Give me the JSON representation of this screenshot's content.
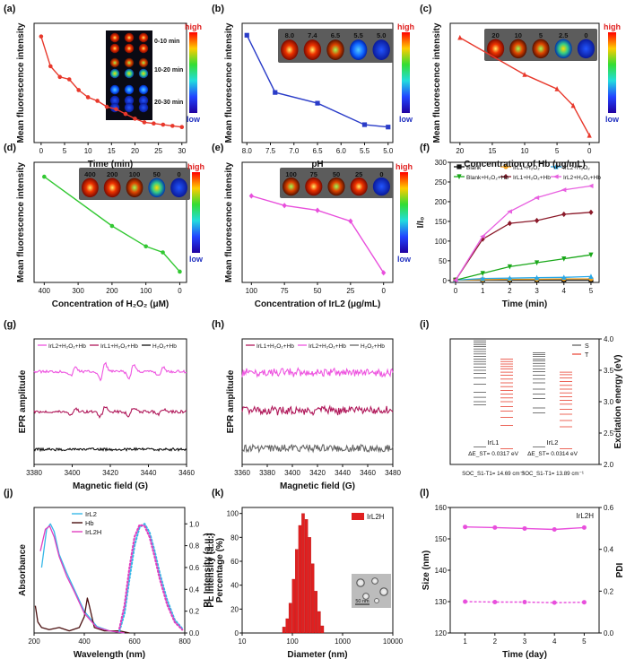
{
  "figure": {
    "panel_letters": [
      "(a)",
      "(b)",
      "(c)",
      "(d)",
      "(e)",
      "(f)",
      "(g)",
      "(h)",
      "(i)",
      "(j)",
      "(k)",
      "(l)"
    ],
    "colorbar": {
      "high": "high",
      "low": "low"
    }
  },
  "chart_data": [
    {
      "panel": "(a)",
      "type": "line",
      "xlabel": "Time (min)",
      "ylabel": "Mean fluorescence intensity",
      "xlim": [
        -1.5,
        31
      ],
      "ylim": [
        0,
        1
      ],
      "xticks": [
        0,
        5,
        10,
        15,
        20,
        25,
        30
      ],
      "series": [
        {
          "name": "intensity",
          "color": "#e8382b",
          "x": [
            0,
            2,
            4,
            6,
            8,
            10,
            12,
            14,
            16,
            18,
            20,
            22,
            24,
            26,
            28,
            30
          ],
          "y": [
            0.89,
            0.64,
            0.55,
            0.53,
            0.44,
            0.38,
            0.35,
            0.3,
            0.28,
            0.24,
            0.2,
            0.17,
            0.16,
            0.15,
            0.14,
            0.13
          ]
        }
      ],
      "inset_labels": [
        "0-10 min",
        "10-20 min",
        "20-30 min"
      ]
    },
    {
      "panel": "(b)",
      "type": "line",
      "xlabel": "pH",
      "ylabel": "Mean fluorescence intensity",
      "xlim": [
        8.1,
        4.9
      ],
      "ylim": [
        0,
        1
      ],
      "xticks": [
        8.0,
        7.5,
        7.0,
        6.5,
        6.0,
        5.5,
        5.0
      ],
      "xtick_labels": [
        "8.0",
        "7.5",
        "7.0",
        "6.5",
        "6.0",
        "5.5",
        "5.0"
      ],
      "series": [
        {
          "name": "intensity",
          "color": "#2a3cc8",
          "x": [
            8.0,
            7.4,
            6.5,
            5.5,
            5.0
          ],
          "y": [
            0.9,
            0.42,
            0.33,
            0.15,
            0.13
          ]
        }
      ],
      "inset_labels": [
        "8.0",
        "7.4",
        "6.5",
        "5.5",
        "5.0"
      ]
    },
    {
      "panel": "(c)",
      "type": "line",
      "xlabel": "Concentration of Hb (μg/mL)",
      "ylabel": "Mean fluorescence intensity",
      "xlim": [
        21.5,
        -1.5
      ],
      "ylim": [
        0,
        1
      ],
      "xticks": [
        20,
        15,
        10,
        5,
        0
      ],
      "series": [
        {
          "name": "intensity",
          "color": "#e8382b",
          "x": [
            20,
            10,
            5,
            2.5,
            0
          ],
          "y": [
            0.88,
            0.57,
            0.45,
            0.31,
            0.06
          ]
        }
      ],
      "inset_labels": [
        "20",
        "10",
        "5",
        "2.5",
        "0"
      ]
    },
    {
      "panel": "(d)",
      "type": "line",
      "xlabel": "Concentration of H₂O₂ (μM)",
      "ylabel": "Mean fluorescence intensity",
      "xlim": [
        430,
        -20
      ],
      "ylim": [
        0,
        1
      ],
      "xticks": [
        400,
        300,
        200,
        100,
        0
      ],
      "series": [
        {
          "name": "intensity",
          "color": "#33c833",
          "x": [
            400,
            200,
            100,
            50,
            0
          ],
          "y": [
            0.88,
            0.47,
            0.3,
            0.25,
            0.09
          ]
        }
      ],
      "inset_labels": [
        "400",
        "200",
        "100",
        "50",
        "0"
      ]
    },
    {
      "panel": "(e)",
      "type": "line",
      "xlabel": "Concentration of IrL2 (μg/mL)",
      "ylabel": "Mean fluorescence intensity",
      "xlim": [
        107,
        -7
      ],
      "ylim": [
        0,
        1
      ],
      "xticks": [
        100,
        75,
        50,
        25,
        0
      ],
      "series": [
        {
          "name": "intensity",
          "color": "#e84fdc",
          "x": [
            100,
            75,
            50,
            25,
            0
          ],
          "y": [
            0.72,
            0.64,
            0.6,
            0.51,
            0.08
          ]
        }
      ],
      "inset_labels": [
        "100",
        "75",
        "50",
        "25",
        "0"
      ]
    },
    {
      "panel": "(f)",
      "type": "line",
      "xlabel": "Time (min)",
      "ylabel": "I/I₀",
      "xlim": [
        -0.2,
        5.3
      ],
      "ylim": [
        -5,
        300
      ],
      "xticks": [
        0,
        1,
        2,
        3,
        4,
        5
      ],
      "yticks": [
        0,
        50,
        100,
        150,
        200,
        250,
        300
      ],
      "series": [
        {
          "name": "Blank",
          "color": "#111111",
          "marker": "square",
          "x": [
            0,
            1,
            2,
            3,
            4,
            5
          ],
          "y": [
            1,
            1,
            1,
            1,
            1,
            1
          ]
        },
        {
          "name": "IrL1+H₂O₂",
          "color": "#f0a020",
          "marker": "circle",
          "x": [
            0,
            1,
            2,
            3,
            4,
            5
          ],
          "y": [
            1,
            2,
            3,
            3,
            4,
            4
          ]
        },
        {
          "name": "IrL2+H₂O₂",
          "color": "#28a8e8",
          "marker": "triangle",
          "x": [
            0,
            1,
            2,
            3,
            4,
            5
          ],
          "y": [
            1,
            5,
            6,
            7,
            8,
            10
          ]
        },
        {
          "name": "Blank+H₂O₂+Hb",
          "color": "#1aa81a",
          "marker": "triangle-down",
          "x": [
            0,
            1,
            2,
            3,
            4,
            5
          ],
          "y": [
            1,
            18,
            35,
            45,
            55,
            65
          ]
        },
        {
          "name": "IrL1+H₂O₂+Hb",
          "color": "#8b1a2a",
          "marker": "diamond",
          "x": [
            0,
            1,
            2,
            3,
            4,
            5
          ],
          "y": [
            1,
            105,
            145,
            152,
            168,
            173
          ]
        },
        {
          "name": "IrL2+H₂O₂+Hb",
          "color": "#e860e0",
          "marker": "triangle-left",
          "x": [
            0,
            1,
            2,
            3,
            4,
            5
          ],
          "y": [
            1,
            112,
            175,
            210,
            230,
            240
          ]
        }
      ]
    },
    {
      "panel": "(g)",
      "type": "line",
      "xlabel": "Magnetic field (G)",
      "ylabel": "EPR amplitude",
      "xlim": [
        3380,
        3460
      ],
      "xticks": [
        3380,
        3400,
        3420,
        3440,
        3460
      ],
      "legend": [
        "IrL2+H₂O₂+Hb",
        "IrL1+H₂O₂+Hb",
        "H₂O₂+Hb"
      ],
      "series": [
        {
          "name": "IrL2+H₂O₂+Hb",
          "color": "#ee55e0",
          "baseline": 0.74,
          "peaks": [
            {
              "x": 3400.5,
              "h": 1.0
            },
            {
              "x": 3416,
              "h": 1.9
            },
            {
              "x": 3431,
              "h": 1.6
            },
            {
              "x": 3446.5,
              "h": 0.9
            }
          ]
        },
        {
          "name": "IrL1+H₂O₂+Hb",
          "color": "#b0185a",
          "baseline": 0.42,
          "peaks": [
            {
              "x": 3400.5,
              "h": 0.7
            },
            {
              "x": 3416,
              "h": 1.1
            },
            {
              "x": 3431,
              "h": 1.0
            },
            {
              "x": 3446.5,
              "h": 0.55
            }
          ]
        },
        {
          "name": "H₂O₂+Hb",
          "color": "#111111",
          "baseline": 0.12,
          "peaks": []
        }
      ]
    },
    {
      "panel": "(h)",
      "type": "line",
      "xlabel": "Magnetic field (G)",
      "ylabel": "EPR amplitude",
      "xlim": [
        3360,
        3480
      ],
      "xticks": [
        3360,
        3380,
        3400,
        3420,
        3440,
        3460,
        3480
      ],
      "legend": [
        "IrL1+H₂O₂+Hb",
        "IrL2+H₂O₂+Hb",
        "H₂O₂+Hb"
      ],
      "series": [
        {
          "name": "IrL2+H₂O₂+Hb",
          "color": "#ee55e0",
          "baseline": 0.73
        },
        {
          "name": "IrL1+H₂O₂+Hb",
          "color": "#b0185a",
          "baseline": 0.43
        },
        {
          "name": "H₂O₂+Hb",
          "color": "#666666",
          "baseline": 0.13
        }
      ]
    },
    {
      "panel": "(i)",
      "type": "line",
      "ylabel": "Excitation energy (eV)",
      "ylim": [
        2.0,
        4.0
      ],
      "yticks": [
        2.0,
        2.5,
        3.0,
        3.5,
        4.0
      ],
      "legend": [
        "S",
        "T"
      ],
      "legend_colors": [
        "#555555",
        "#e84030"
      ],
      "groups": [
        {
          "name": "IrL1",
          "S": [
            2.28,
            2.95,
            3.0,
            3.07,
            3.15,
            3.28,
            3.38,
            3.45,
            3.5,
            3.55,
            3.6,
            3.64,
            3.68,
            3.72,
            3.76,
            3.8,
            3.84,
            3.88,
            3.91,
            3.94,
            3.97
          ],
          "T": [
            2.25,
            2.62,
            2.75,
            2.85,
            2.92,
            3.0,
            3.06,
            3.12,
            3.18,
            3.24,
            3.3,
            3.36,
            3.42,
            3.47,
            3.52,
            3.56,
            3.6,
            3.64,
            3.68
          ],
          "dE_label": "ΔE_ST= 0.0317 eV",
          "soc_label": "SOC_S1-T1= 14.69 cm⁻¹"
        },
        {
          "name": "IrL2",
          "S": [
            2.28,
            2.82,
            2.9,
            3.05,
            3.12,
            3.2,
            3.3,
            3.36,
            3.42,
            3.48,
            3.52,
            3.57,
            3.61,
            3.65,
            3.68,
            3.72,
            3.75,
            3.78
          ],
          "T": [
            2.25,
            2.6,
            2.7,
            2.8,
            2.88,
            2.96,
            3.02,
            3.08,
            3.14,
            3.2,
            3.26,
            3.32,
            3.38,
            3.43,
            3.47
          ],
          "dE_label": "ΔE_ST= 0.0314 eV",
          "soc_label": "SOC_S1-T1= 13.89 cm⁻¹"
        }
      ]
    },
    {
      "panel": "(j)",
      "type": "line",
      "xlabel": "Wavelength (nm)",
      "ylabel": "Absorbance",
      "ylabel_right": "PL Intensity (a.u.)",
      "xlim": [
        200,
        800
      ],
      "xticks": [
        200,
        400,
        600,
        800
      ],
      "y_right_ticks": [
        0.0,
        0.2,
        0.4,
        0.6,
        0.8,
        1.0
      ],
      "y_right_labels": [
        "0.0",
        "0.2",
        "0.4",
        "0.6",
        "0.8",
        "1.0"
      ],
      "legend": [
        "IrL2",
        "Hb",
        "IrL2H"
      ],
      "series": [
        {
          "name": "IrL2",
          "color": "#38b8e8",
          "x": [
            230,
            250,
            265,
            280,
            300,
            330,
            360,
            400,
            450,
            500,
            560
          ],
          "y": [
            0.6,
            0.95,
            1.0,
            0.93,
            0.72,
            0.55,
            0.4,
            0.2,
            0.06,
            0.02,
            0.0
          ]
        },
        {
          "name": "Hb",
          "color": "#4a0f0f",
          "x": [
            205,
            215,
            230,
            260,
            300,
            340,
            380,
            400,
            412,
            420,
            440,
            480,
            540,
            580
          ],
          "y": [
            0.25,
            0.1,
            0.05,
            0.03,
            0.05,
            0.02,
            0.05,
            0.15,
            0.32,
            0.25,
            0.05,
            0.02,
            0.02,
            0.0
          ]
        },
        {
          "name": "IrL2H",
          "color": "#e040c0",
          "x": [
            225,
            245,
            262,
            280,
            300,
            330,
            360,
            400,
            450,
            500,
            560
          ],
          "y": [
            0.75,
            0.95,
            0.98,
            0.88,
            0.7,
            0.52,
            0.38,
            0.18,
            0.05,
            0.02,
            0.0
          ]
        },
        {
          "name": "IrL2 PL",
          "color": "#38b8e8",
          "dotted": true,
          "x": [
            540,
            560,
            580,
            600,
            620,
            640,
            660,
            680,
            700,
            730,
            760,
            790
          ],
          "y": [
            0.02,
            0.18,
            0.5,
            0.8,
            0.97,
            1.0,
            0.92,
            0.75,
            0.55,
            0.3,
            0.12,
            0.04
          ]
        },
        {
          "name": "IrL2H PL",
          "color": "#e040c0",
          "dotted": true,
          "x": [
            540,
            560,
            580,
            600,
            620,
            640,
            660,
            680,
            700,
            730,
            760,
            790
          ],
          "y": [
            0.04,
            0.25,
            0.6,
            0.88,
            0.99,
            0.98,
            0.88,
            0.7,
            0.5,
            0.26,
            0.1,
            0.03
          ]
        }
      ]
    },
    {
      "panel": "(k)",
      "type": "bar",
      "xlabel": "Diameter (nm)",
      "ylabel": "Percentage (%)",
      "xscale": "log",
      "xlim": [
        10,
        10000
      ],
      "xticks": [
        10,
        100,
        1000,
        10000
      ],
      "ylim": [
        0,
        105
      ],
      "yticks": [
        0,
        20,
        40,
        60,
        80,
        100
      ],
      "legend": [
        "IrL2H"
      ],
      "x": [
        68,
        79,
        91,
        106,
        122,
        142,
        164,
        190,
        220,
        255,
        295,
        342,
        396
      ],
      "values": [
        5,
        12,
        25,
        45,
        70,
        90,
        100,
        95,
        80,
        58,
        35,
        18,
        6
      ],
      "inset_scale": "50 nm"
    },
    {
      "panel": "(l)",
      "type": "line",
      "xlabel": "Time (day)",
      "ylabel": "Size (nm)",
      "ylabel_right": "PDI",
      "xlim": [
        0.5,
        5.5
      ],
      "xticks": [
        1,
        2,
        3,
        4,
        5
      ],
      "ylim": [
        120,
        160
      ],
      "yticks": [
        120,
        130,
        140,
        150,
        160
      ],
      "y_right_ticks": [
        0.0,
        0.2,
        0.4,
        0.6
      ],
      "y_right_labels": [
        "0.0",
        "0.2",
        "0.4",
        "0.6"
      ],
      "legend": [
        "IrL2H"
      ],
      "series": [
        {
          "name": "Size",
          "color": "#e84fdc",
          "x": [
            1,
            2,
            3,
            4,
            5
          ],
          "y": [
            153.8,
            153.6,
            153.3,
            153.0,
            153.6
          ]
        },
        {
          "name": "PDI",
          "color": "#e84fdc",
          "dotted": true,
          "x": [
            1,
            2,
            3,
            4,
            5
          ],
          "y": [
            0.15,
            0.148,
            0.148,
            0.145,
            0.147
          ]
        }
      ]
    }
  ]
}
